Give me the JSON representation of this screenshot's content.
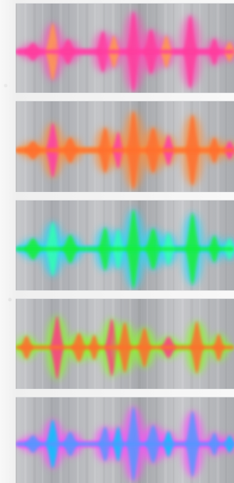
{
  "panels": [
    {
      "id": "panel-1",
      "name": "waveform-panel-1",
      "glow": "#ff4fb8",
      "core": "#ff3d9d",
      "accent": "#ff9a4d",
      "peaks": [
        {
          "x": 0.08,
          "h": 0.1,
          "w": 0.09
        },
        {
          "x": 0.17,
          "h": 0.32,
          "w": 0.07
        },
        {
          "x": 0.24,
          "h": 0.14,
          "w": 0.08
        },
        {
          "x": 0.4,
          "h": 0.23,
          "w": 0.07
        },
        {
          "x": 0.45,
          "h": 0.18,
          "w": 0.06
        },
        {
          "x": 0.54,
          "h": 0.45,
          "w": 0.07
        },
        {
          "x": 0.62,
          "h": 0.25,
          "w": 0.08
        },
        {
          "x": 0.69,
          "h": 0.18,
          "w": 0.06
        },
        {
          "x": 0.8,
          "h": 0.41,
          "w": 0.07
        },
        {
          "x": 0.91,
          "h": 0.15,
          "w": 0.06
        },
        {
          "x": 0.98,
          "h": 0.11,
          "w": 0.06
        }
      ]
    },
    {
      "id": "panel-2",
      "name": "waveform-panel-2",
      "glow": "#ff8d39",
      "core": "#ff6f2e",
      "accent": "#ff3ea7",
      "peaks": [
        {
          "x": 0.08,
          "h": 0.1,
          "w": 0.09
        },
        {
          "x": 0.17,
          "h": 0.3,
          "w": 0.07
        },
        {
          "x": 0.25,
          "h": 0.14,
          "w": 0.08
        },
        {
          "x": 0.41,
          "h": 0.25,
          "w": 0.07
        },
        {
          "x": 0.47,
          "h": 0.2,
          "w": 0.06
        },
        {
          "x": 0.54,
          "h": 0.43,
          "w": 0.07
        },
        {
          "x": 0.63,
          "h": 0.25,
          "w": 0.08
        },
        {
          "x": 0.7,
          "h": 0.17,
          "w": 0.06
        },
        {
          "x": 0.81,
          "h": 0.39,
          "w": 0.07
        },
        {
          "x": 0.91,
          "h": 0.14,
          "w": 0.06
        },
        {
          "x": 0.98,
          "h": 0.1,
          "w": 0.06
        }
      ]
    },
    {
      "id": "panel-3",
      "name": "waveform-panel-3",
      "glow": "#24d8ff",
      "core": "#12ef38",
      "accent": "#31ffb2",
      "peaks": [
        {
          "x": 0.08,
          "h": 0.12,
          "w": 0.09
        },
        {
          "x": 0.17,
          "h": 0.3,
          "w": 0.07
        },
        {
          "x": 0.25,
          "h": 0.16,
          "w": 0.08
        },
        {
          "x": 0.41,
          "h": 0.24,
          "w": 0.07
        },
        {
          "x": 0.47,
          "h": 0.22,
          "w": 0.06
        },
        {
          "x": 0.54,
          "h": 0.44,
          "w": 0.07
        },
        {
          "x": 0.63,
          "h": 0.23,
          "w": 0.08
        },
        {
          "x": 0.7,
          "h": 0.18,
          "w": 0.06
        },
        {
          "x": 0.81,
          "h": 0.4,
          "w": 0.07
        },
        {
          "x": 0.91,
          "h": 0.15,
          "w": 0.06
        },
        {
          "x": 0.98,
          "h": 0.12,
          "w": 0.06
        }
      ]
    },
    {
      "id": "panel-4",
      "name": "waveform-panel-4",
      "glow": "#88ff1d",
      "core": "#ff6d2e",
      "accent": "#ff3b83",
      "peaks": [
        {
          "x": 0.05,
          "h": 0.13,
          "w": 0.07
        },
        {
          "x": 0.19,
          "h": 0.35,
          "w": 0.07
        },
        {
          "x": 0.29,
          "h": 0.16,
          "w": 0.08
        },
        {
          "x": 0.36,
          "h": 0.14,
          "w": 0.06
        },
        {
          "x": 0.44,
          "h": 0.32,
          "w": 0.07
        },
        {
          "x": 0.5,
          "h": 0.28,
          "w": 0.07
        },
        {
          "x": 0.59,
          "h": 0.22,
          "w": 0.07
        },
        {
          "x": 0.7,
          "h": 0.12,
          "w": 0.08
        },
        {
          "x": 0.83,
          "h": 0.29,
          "w": 0.07
        },
        {
          "x": 0.93,
          "h": 0.15,
          "w": 0.06
        }
      ]
    },
    {
      "id": "panel-5",
      "name": "waveform-panel-5",
      "glow": "#ff48ff",
      "core": "#5297ff",
      "accent": "#00c6ff",
      "peaks": [
        {
          "x": 0.08,
          "h": 0.1,
          "w": 0.09
        },
        {
          "x": 0.17,
          "h": 0.28,
          "w": 0.07
        },
        {
          "x": 0.25,
          "h": 0.14,
          "w": 0.08
        },
        {
          "x": 0.41,
          "h": 0.2,
          "w": 0.07
        },
        {
          "x": 0.47,
          "h": 0.2,
          "w": 0.06
        },
        {
          "x": 0.54,
          "h": 0.43,
          "w": 0.07
        },
        {
          "x": 0.63,
          "h": 0.22,
          "w": 0.08
        },
        {
          "x": 0.7,
          "h": 0.15,
          "w": 0.06
        },
        {
          "x": 0.81,
          "h": 0.38,
          "w": 0.07
        },
        {
          "x": 0.91,
          "h": 0.13,
          "w": 0.06
        },
        {
          "x": 0.98,
          "h": 0.1,
          "w": 0.06
        }
      ]
    }
  ]
}
